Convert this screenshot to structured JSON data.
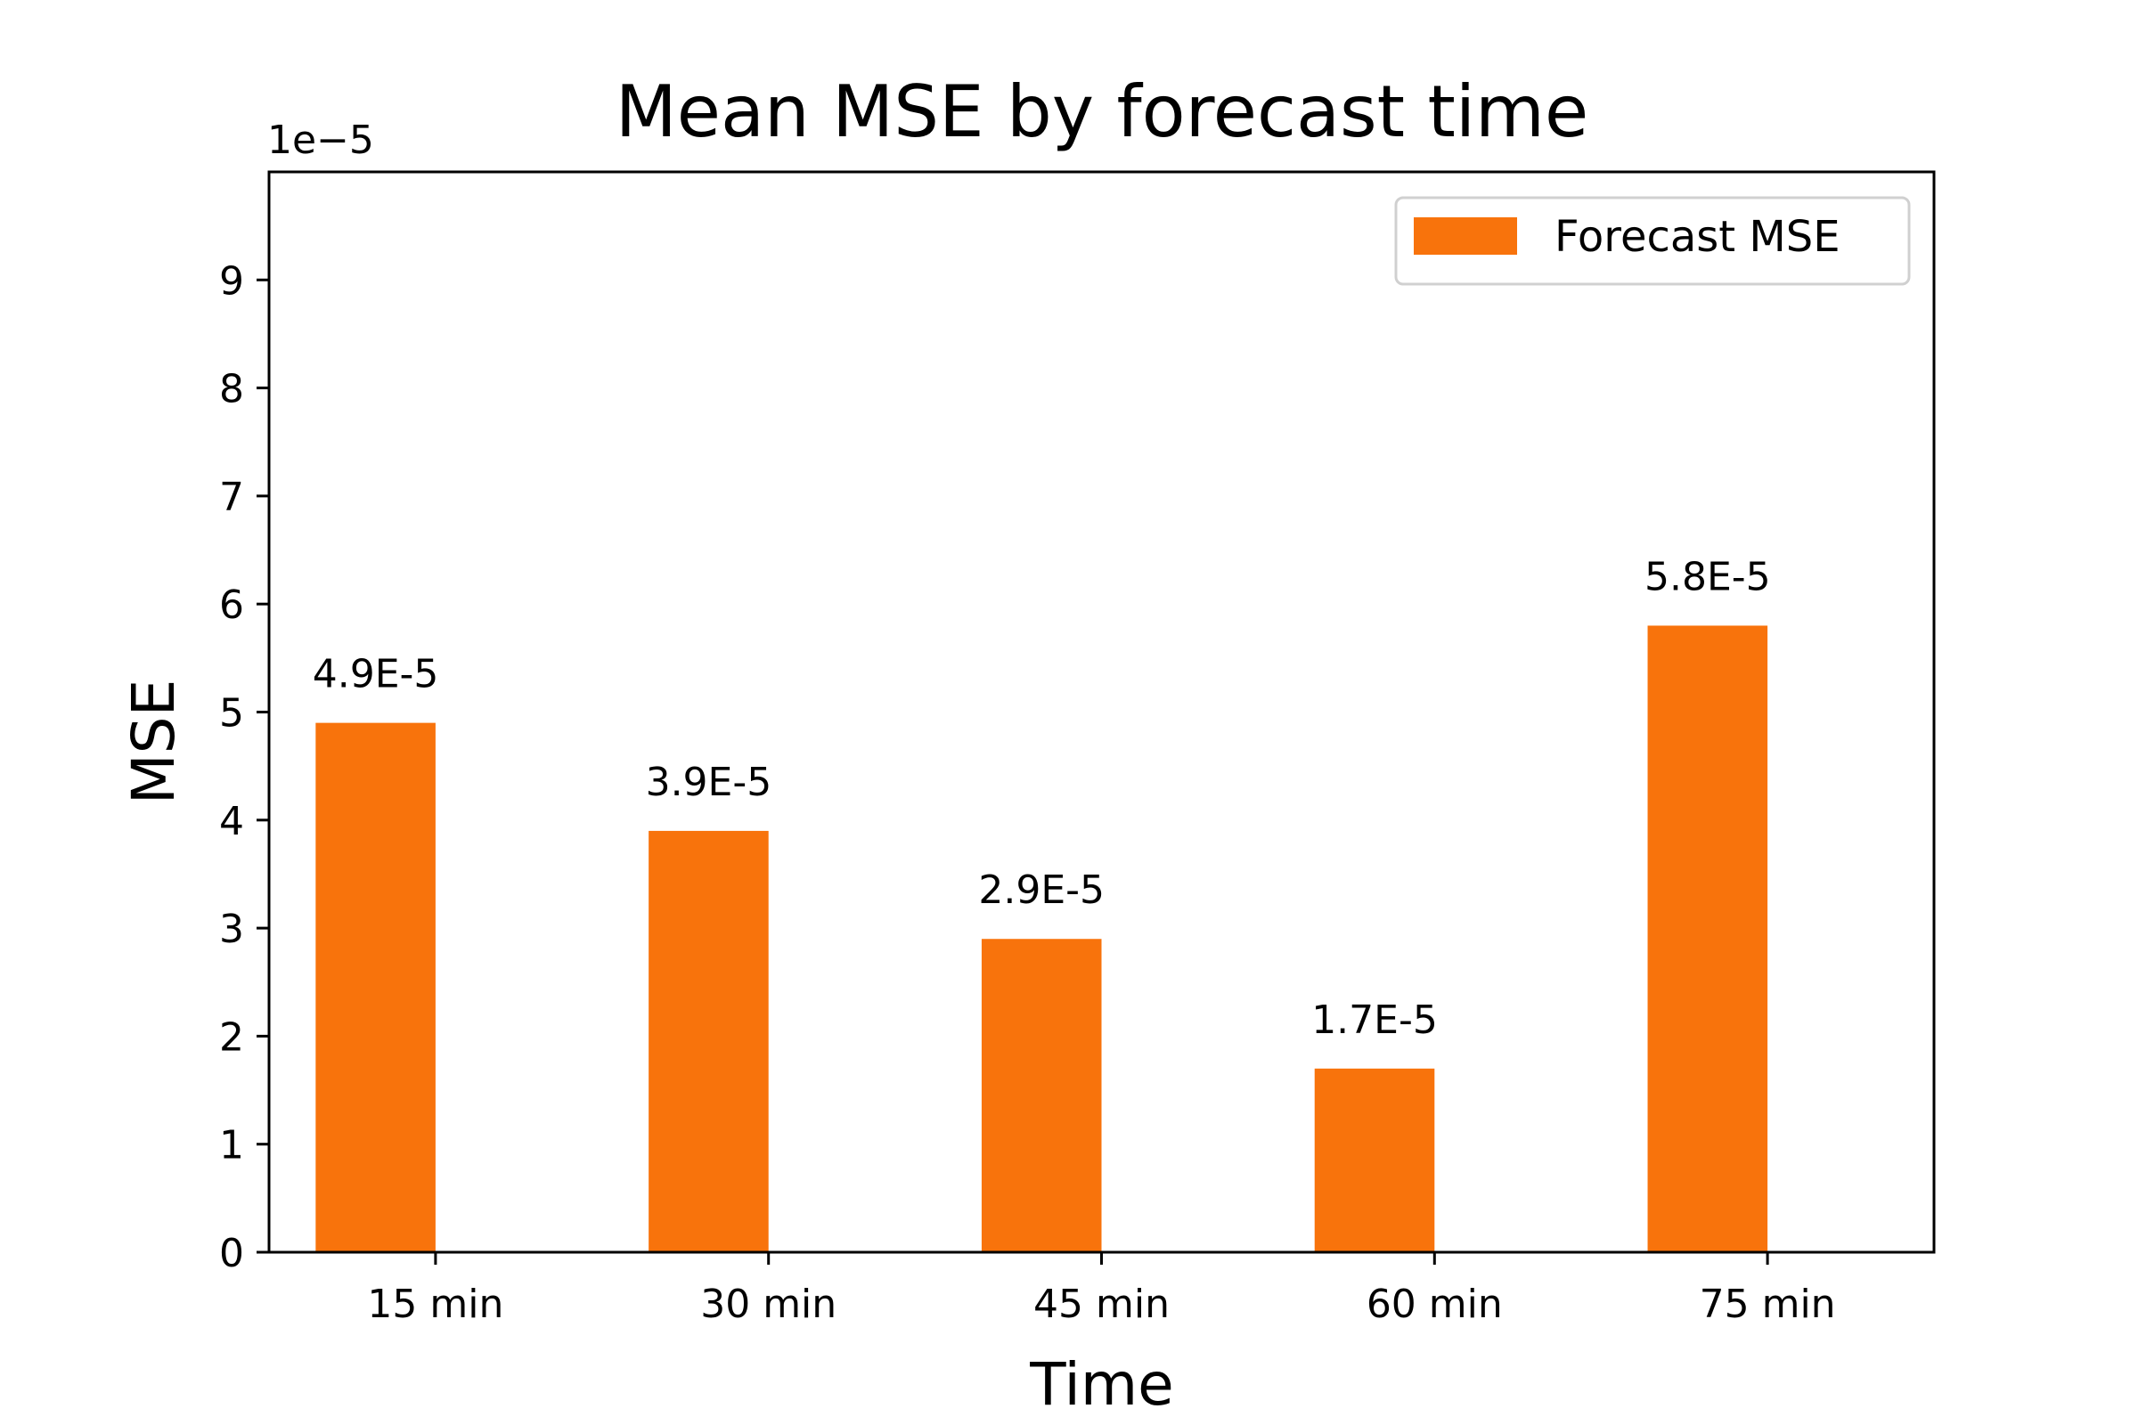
{
  "chart_data": {
    "type": "bar",
    "title": "Mean MSE by forecast time",
    "xlabel": "Time",
    "ylabel": "MSE",
    "y_scale_label": "1e−5",
    "categories": [
      "15 min",
      "30 min",
      "45 min",
      "60 min",
      "75 min"
    ],
    "series": [
      {
        "name": "Forecast MSE",
        "values": [
          4.9e-05,
          3.9e-05,
          2.9e-05,
          1.7e-05,
          5.8e-05
        ],
        "data_labels": [
          "4.9E-5",
          "3.9E-5",
          "2.9E-5",
          "1.7E-5",
          "5.8E-5"
        ],
        "color": "#F8730C"
      }
    ],
    "ylim": [
      0,
      0.0001
    ],
    "yticks": [
      0,
      1,
      2,
      3,
      4,
      5,
      6,
      7,
      8,
      9
    ],
    "grid": false,
    "legend_position": "top-right"
  }
}
